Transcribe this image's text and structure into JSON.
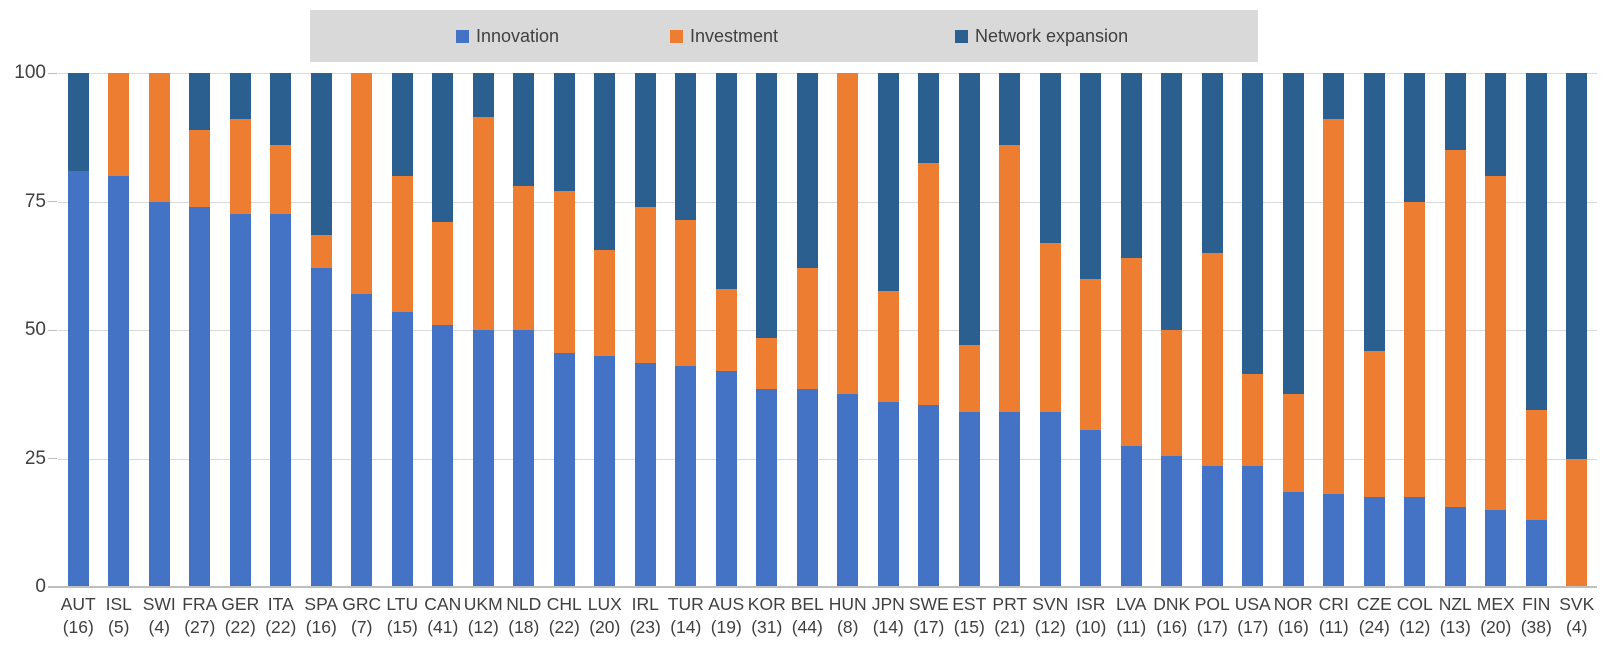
{
  "legend": {
    "background": "#d9d9d9",
    "items": [
      {
        "label": "Innovation",
        "color": "#4472C4",
        "x": 146
      },
      {
        "label": "Investment",
        "color": "#ED7D31",
        "x": 360
      },
      {
        "label": "Network expansion",
        "color": "#2A5F8F",
        "x": 645
      }
    ]
  },
  "chart_data": {
    "type": "bar",
    "stacked": true,
    "title": "",
    "xlabel": "",
    "ylabel": "",
    "ylim": [
      0,
      100
    ],
    "yticks": [
      0,
      25,
      50,
      75,
      100
    ],
    "grid": true,
    "legend_position": "top",
    "categories": [
      "AUT",
      "ISL",
      "SWI",
      "FRA",
      "GER",
      "ITA",
      "SPA",
      "GRC",
      "LTU",
      "CAN",
      "UKM",
      "NLD",
      "CHL",
      "LUX",
      "IRL",
      "TUR",
      "AUS",
      "KOR",
      "BEL",
      "HUN",
      "JPN",
      "SWE",
      "EST",
      "PRT",
      "SVN",
      "ISR",
      "LVA",
      "DNK",
      "POL",
      "USA",
      "NOR",
      "CRI",
      "CZE",
      "COL",
      "NZL",
      "MEX",
      "FIN",
      "SVK"
    ],
    "category_counts": [
      16,
      5,
      4,
      27,
      22,
      22,
      16,
      7,
      15,
      41,
      12,
      18,
      22,
      20,
      23,
      14,
      19,
      31,
      44,
      8,
      14,
      17,
      15,
      21,
      12,
      10,
      11,
      16,
      17,
      17,
      16,
      11,
      24,
      12,
      13,
      20,
      38,
      4
    ],
    "count_format": "({n})",
    "series": [
      {
        "name": "Innovation",
        "color": "#4472C4",
        "values": [
          81,
          80,
          75,
          74,
          72.5,
          72.5,
          62,
          57,
          53.5,
          51,
          50,
          50,
          45.5,
          45,
          43.5,
          43,
          42,
          38.5,
          38.5,
          37.5,
          36,
          35.5,
          34,
          34,
          34,
          30.5,
          27.5,
          25.5,
          23.5,
          23.5,
          18.5,
          18,
          17.5,
          17.5,
          15.5,
          15,
          13,
          0
        ]
      },
      {
        "name": "Investment",
        "color": "#ED7D31",
        "values": [
          0,
          20,
          25,
          15,
          18.5,
          13.5,
          6.5,
          43,
          26.5,
          20,
          41.5,
          28,
          31.5,
          20.5,
          30.5,
          28.5,
          16,
          10,
          23.5,
          62.5,
          21.5,
          47,
          13,
          52,
          33,
          29.5,
          36.5,
          24.5,
          41.5,
          18,
          19,
          73,
          28.5,
          57.5,
          69.5,
          65,
          21.5,
          25
        ]
      },
      {
        "name": "Network expansion",
        "color": "#2A5F8F",
        "values": [
          19,
          0,
          0,
          11,
          9,
          14,
          31.5,
          0,
          20,
          29,
          8.5,
          22,
          23,
          34.5,
          26,
          28.5,
          42,
          51.5,
          38,
          0,
          42.5,
          17.5,
          53,
          14,
          33,
          40,
          36,
          50,
          35,
          58.5,
          62.5,
          9,
          54,
          25,
          15,
          20,
          65.5,
          75
        ]
      }
    ],
    "axis_text_color": "#404040",
    "gridline_color": "#d9d9d9",
    "axis_line_color": "#bfbfbf"
  }
}
